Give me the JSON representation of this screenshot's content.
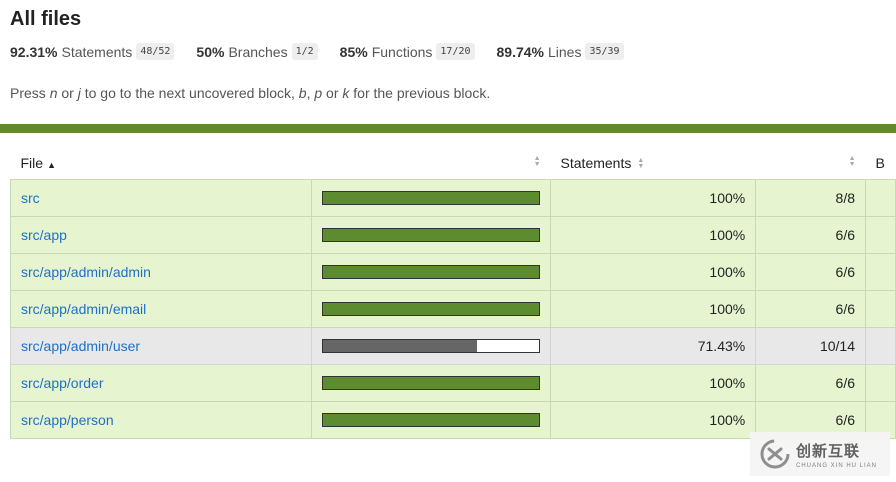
{
  "page": {
    "title": "All files",
    "hint": {
      "p1": "Press ",
      "k1": "n",
      "p2": " or ",
      "k2": "j",
      "p3": " to go to the next uncovered block, ",
      "k3": "b",
      "p4": ", ",
      "k4": "p",
      "p5": " or ",
      "k5": "k",
      "p6": " for the previous block."
    }
  },
  "summary": [
    {
      "pct": "92.31%",
      "label": "Statements",
      "fraction": "48/52"
    },
    {
      "pct": "50%",
      "label": "Branches",
      "fraction": "1/2"
    },
    {
      "pct": "85%",
      "label": "Functions",
      "fraction": "17/20"
    },
    {
      "pct": "89.74%",
      "label": "Lines",
      "fraction": "35/39"
    }
  ],
  "table": {
    "headers": {
      "file": "File",
      "statements": "Statements",
      "next": "B"
    },
    "rows": [
      {
        "file": "src",
        "pct": "100%",
        "fraction": "8/8",
        "coverage": 1.0,
        "level": "high"
      },
      {
        "file": "src/app",
        "pct": "100%",
        "fraction": "6/6",
        "coverage": 1.0,
        "level": "high"
      },
      {
        "file": "src/app/admin/admin",
        "pct": "100%",
        "fraction": "6/6",
        "coverage": 1.0,
        "level": "high"
      },
      {
        "file": "src/app/admin/email",
        "pct": "100%",
        "fraction": "6/6",
        "coverage": 1.0,
        "level": "high"
      },
      {
        "file": "src/app/admin/user",
        "pct": "71.43%",
        "fraction": "10/14",
        "coverage": 0.7143,
        "level": "medium"
      },
      {
        "file": "src/app/order",
        "pct": "100%",
        "fraction": "6/6",
        "coverage": 1.0,
        "level": "high"
      },
      {
        "file": "src/app/person",
        "pct": "100%",
        "fraction": "6/6",
        "coverage": 1.0,
        "level": "high"
      }
    ]
  },
  "colors": {
    "status_bar": "#638a32",
    "bar_high": "#5d8b2f",
    "bar_medium": "#666666",
    "row_high": "#e6f5d0",
    "row_medium": "#e8e8e8",
    "link": "#1f6fc5"
  },
  "watermark": {
    "cn": "创新互联",
    "en": "CHUANG XIN HU LIAN"
  }
}
